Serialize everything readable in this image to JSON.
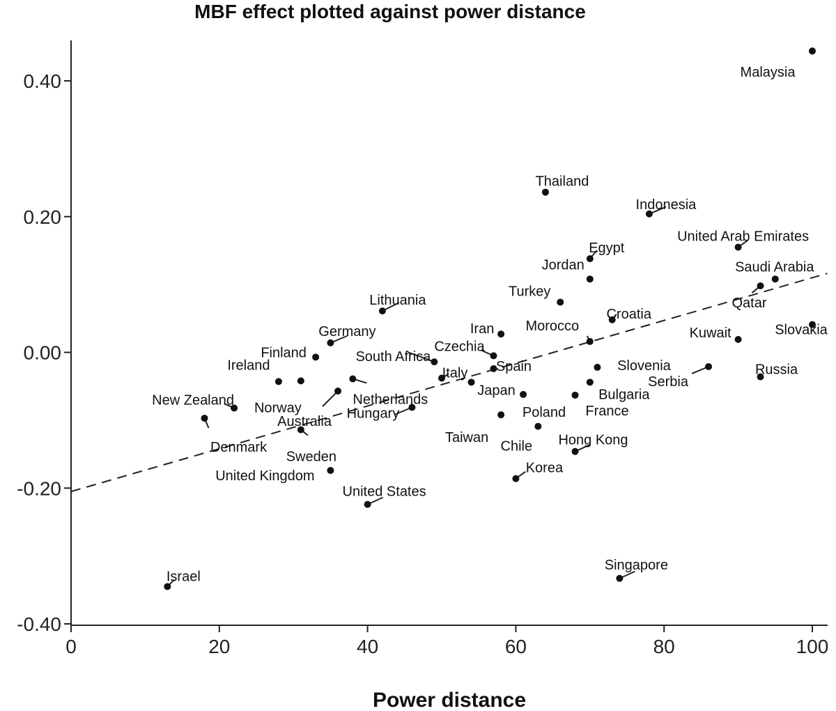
{
  "chart_data": {
    "type": "scatter",
    "title": "MBF effect plotted against power distance",
    "xlabel": "Power distance",
    "ylabel": "",
    "xlim": [
      0,
      102
    ],
    "ylim": [
      -0.4,
      0.46
    ],
    "xticks": [
      0,
      20,
      40,
      60,
      80,
      100
    ],
    "xtick_labels": [
      "0",
      "20",
      "40",
      "60",
      "80",
      "100"
    ],
    "yticks": [
      -0.4,
      -0.2,
      0.0,
      0.2,
      0.4
    ],
    "ytick_labels": [
      "-0.40",
      "-0.20",
      "0.00",
      "0.20",
      "0.40"
    ],
    "trendline": {
      "style": "dashed",
      "intercept": -0.205,
      "slope": 0.00315
    },
    "points": [
      {
        "label": "Malaysia",
        "x": 100,
        "y": 0.444
      },
      {
        "label": "Thailand",
        "x": 64,
        "y": 0.236
      },
      {
        "label": "Indonesia",
        "x": 78,
        "y": 0.204
      },
      {
        "label": "United Arab Emirates",
        "x": 90,
        "y": 0.155
      },
      {
        "label": "Egypt",
        "x": 70,
        "y": 0.138
      },
      {
        "label": "Jordan",
        "x": 70,
        "y": 0.108
      },
      {
        "label": "Saudi Arabia",
        "x": 95,
        "y": 0.108
      },
      {
        "label": "Qatar",
        "x": 93,
        "y": 0.098
      },
      {
        "label": "Turkey",
        "x": 66,
        "y": 0.074
      },
      {
        "label": "Lithuania",
        "x": 42,
        "y": 0.061
      },
      {
        "label": "Croatia",
        "x": 73,
        "y": 0.048
      },
      {
        "label": "Slovakia",
        "x": 100,
        "y": 0.041
      },
      {
        "label": "Iran",
        "x": 58,
        "y": 0.027
      },
      {
        "label": "Kuwait",
        "x": 90,
        "y": 0.019
      },
      {
        "label": "Morocco",
        "x": 70,
        "y": 0.016
      },
      {
        "label": "Germany",
        "x": 35,
        "y": 0.014
      },
      {
        "label": "Finland",
        "x": 33,
        "y": -0.007
      },
      {
        "label": "Czechia",
        "x": 57,
        "y": -0.005
      },
      {
        "label": "South Africa",
        "x": 49,
        "y": -0.014
      },
      {
        "label": "Spain",
        "x": 57,
        "y": -0.024
      },
      {
        "label": "Slovenia",
        "x": 71,
        "y": -0.022
      },
      {
        "label": "Serbia",
        "x": 86,
        "y": -0.021
      },
      {
        "label": "Ireland",
        "x": 28,
        "y": -0.043
      },
      {
        "label": "Norway",
        "x": 31,
        "y": -0.042
      },
      {
        "label": "Italy",
        "x": 50,
        "y": -0.038
      },
      {
        "label": "Netherlands",
        "x": 38,
        "y": -0.039
      },
      {
        "label": "Japan",
        "x": 54,
        "y": -0.044
      },
      {
        "label": "Russia",
        "x": 93,
        "y": -0.036
      },
      {
        "label": "Bulgaria",
        "x": 70,
        "y": -0.044
      },
      {
        "label": "Australia",
        "x": 36,
        "y": -0.057
      },
      {
        "label": "Poland",
        "x": 61,
        "y": -0.062
      },
      {
        "label": "France",
        "x": 68,
        "y": -0.063
      },
      {
        "label": "New Zealand",
        "x": 22,
        "y": -0.082
      },
      {
        "label": "Hungary",
        "x": 46,
        "y": -0.081
      },
      {
        "label": "Taiwan",
        "x": 58,
        "y": -0.092
      },
      {
        "label": "Denmark",
        "x": 18,
        "y": -0.097
      },
      {
        "label": "Chile",
        "x": 63,
        "y": -0.109
      },
      {
        "label": "Sweden",
        "x": 31,
        "y": -0.114
      },
      {
        "label": "Hong Kong",
        "x": 68,
        "y": -0.146
      },
      {
        "label": "United Kingdom",
        "x": 35,
        "y": -0.174
      },
      {
        "label": "Korea",
        "x": 60,
        "y": -0.186
      },
      {
        "label": "United States",
        "x": 40,
        "y": -0.224
      },
      {
        "label": "Israel",
        "x": 13,
        "y": -0.345
      },
      {
        "label": "Singapore",
        "x": 74,
        "y": -0.333
      }
    ]
  }
}
